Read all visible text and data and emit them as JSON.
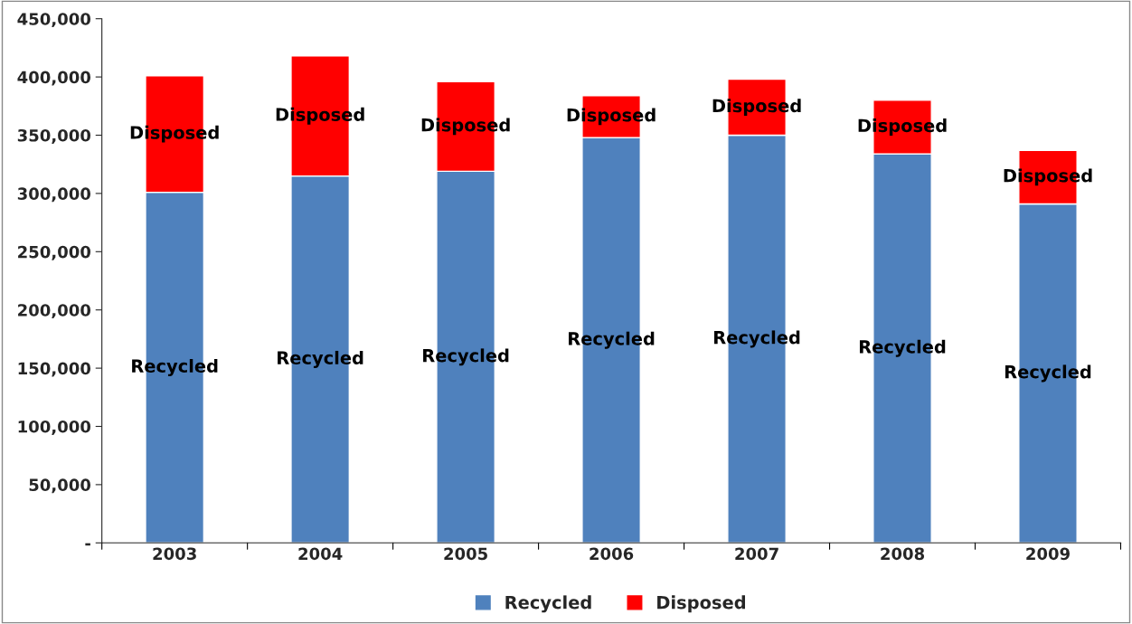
{
  "chart_data": {
    "type": "bar",
    "stacked": true,
    "categories": [
      "2003",
      "2004",
      "2005",
      "2006",
      "2007",
      "2008",
      "2009"
    ],
    "series": [
      {
        "name": "Recycled",
        "color": "#4f81bd",
        "values": [
          301000,
          315000,
          319000,
          348000,
          350000,
          334000,
          291000
        ],
        "value_labels": [
          "Recycled",
          "Recycled",
          "Recycled",
          "Recycled",
          "Recycled",
          "Recycled",
          "Recycled"
        ]
      },
      {
        "name": "Disposed",
        "color": "#ff0000",
        "values": [
          100000,
          103000,
          77000,
          36000,
          48000,
          46000,
          46000
        ],
        "value_labels": [
          "Disposed",
          "Disposed",
          "Disposed",
          "Disposed",
          "Disposed",
          "Disposed",
          "Disposed"
        ]
      }
    ],
    "ylim": [
      0,
      450000
    ],
    "yticks": [
      {
        "value": 0,
        "label": "-"
      },
      {
        "value": 50000,
        "label": "50,000"
      },
      {
        "value": 100000,
        "label": "100,000"
      },
      {
        "value": 150000,
        "label": "150,000"
      },
      {
        "value": 200000,
        "label": "200,000"
      },
      {
        "value": 250000,
        "label": "250,000"
      },
      {
        "value": 300000,
        "label": "300,000"
      },
      {
        "value": 350000,
        "label": "350,000"
      },
      {
        "value": 400000,
        "label": "400,000"
      },
      {
        "value": 450000,
        "label": "450,000"
      }
    ],
    "grid": false,
    "legend": "bottom"
  }
}
